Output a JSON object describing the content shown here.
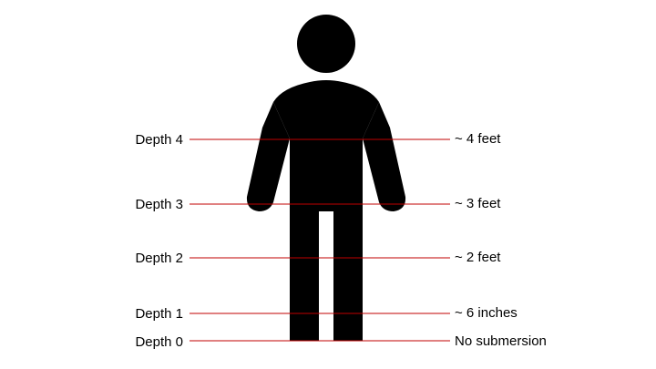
{
  "colors": {
    "line": "#c00000",
    "figure": "#000000",
    "text": "#000000"
  },
  "figure": {
    "icon": "standing-person-icon"
  },
  "levels": [
    {
      "depth": "Depth 4",
      "measure": "~ 4 feet"
    },
    {
      "depth": "Depth 3",
      "measure": "~ 3 feet"
    },
    {
      "depth": "Depth 2",
      "measure": "~ 2 feet"
    },
    {
      "depth": "Depth 1",
      "measure": "~ 6 inches"
    },
    {
      "depth": "Depth 0",
      "measure": "No submersion"
    }
  ]
}
